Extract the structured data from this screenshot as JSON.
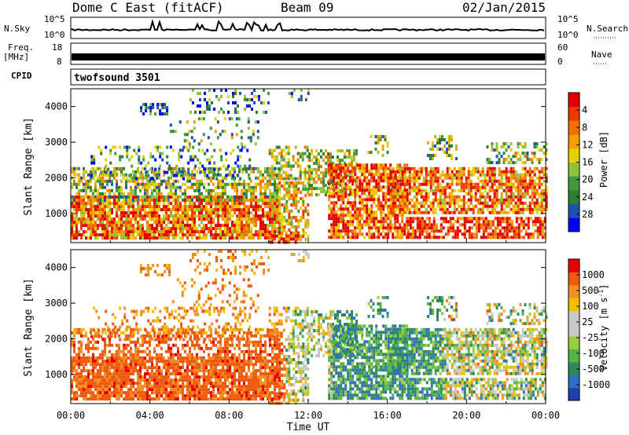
{
  "header": {
    "title": "Dome C East (fitACF)",
    "beam": "Beam 09",
    "date": "02/Jan/2015"
  },
  "top_panels": {
    "nsky_label": "N.Sky",
    "nsky_ticks": [
      "10^5",
      "10^0"
    ],
    "nsearch_label": "N.Search",
    "nsearch_ticks": [
      "10^5",
      "10^0"
    ],
    "freq_label": "Freq.",
    "freq_unit": "[MHz]",
    "freq_ticks": [
      "18",
      "8"
    ],
    "nave_label": "Nave",
    "nave_ticks": [
      "60",
      "0"
    ],
    "cpid_label": "CPID",
    "cpid_value": "twofsound 3501"
  },
  "chart_data": [
    {
      "type": "heatmap",
      "name": "power",
      "ylabel": "Slant Range [km]",
      "yticks": [
        "1000",
        "2000",
        "3000",
        "4000"
      ],
      "ylim": [
        180,
        4500
      ],
      "xticks": [],
      "xlim": [
        0,
        24
      ],
      "colorbar": {
        "label": "Power [dB]",
        "ticks": [
          "4",
          "8",
          "12",
          "16",
          "20",
          "24",
          "28"
        ],
        "colors": [
          "#0000ff",
          "#1e50b4",
          "#2e7d32",
          "#3f9a3f",
          "#90c23a",
          "#e8d000",
          "#f2a000",
          "#f07000",
          "#ee3a00",
          "#e00000"
        ]
      }
    },
    {
      "type": "heatmap",
      "name": "velocity",
      "ylabel": "Slant Range [km]",
      "yticks": [
        "1000",
        "2000",
        "3000",
        "4000"
      ],
      "ylim": [
        180,
        4500
      ],
      "xlabel": "Time UT",
      "xticks": [
        "00:00",
        "04:00",
        "08:00",
        "12:00",
        "16:00",
        "20:00",
        "00:00"
      ],
      "xlim": [
        0,
        24
      ],
      "colorbar": {
        "label": "Velocity [m s",
        "label_sup": "-1",
        "label_end": "]",
        "ticks": [
          "1000",
          "500",
          "100",
          "25",
          "-25",
          "-100",
          "-500",
          "-1000"
        ],
        "colors": [
          "#1e3fb0",
          "#2f6fbf",
          "#2e8b57",
          "#56b34a",
          "#9ccd3e",
          "#c8c8c8",
          "#c8c8c8",
          "#f0c000",
          "#f09020",
          "#f05a10",
          "#e80000"
        ]
      }
    }
  ]
}
